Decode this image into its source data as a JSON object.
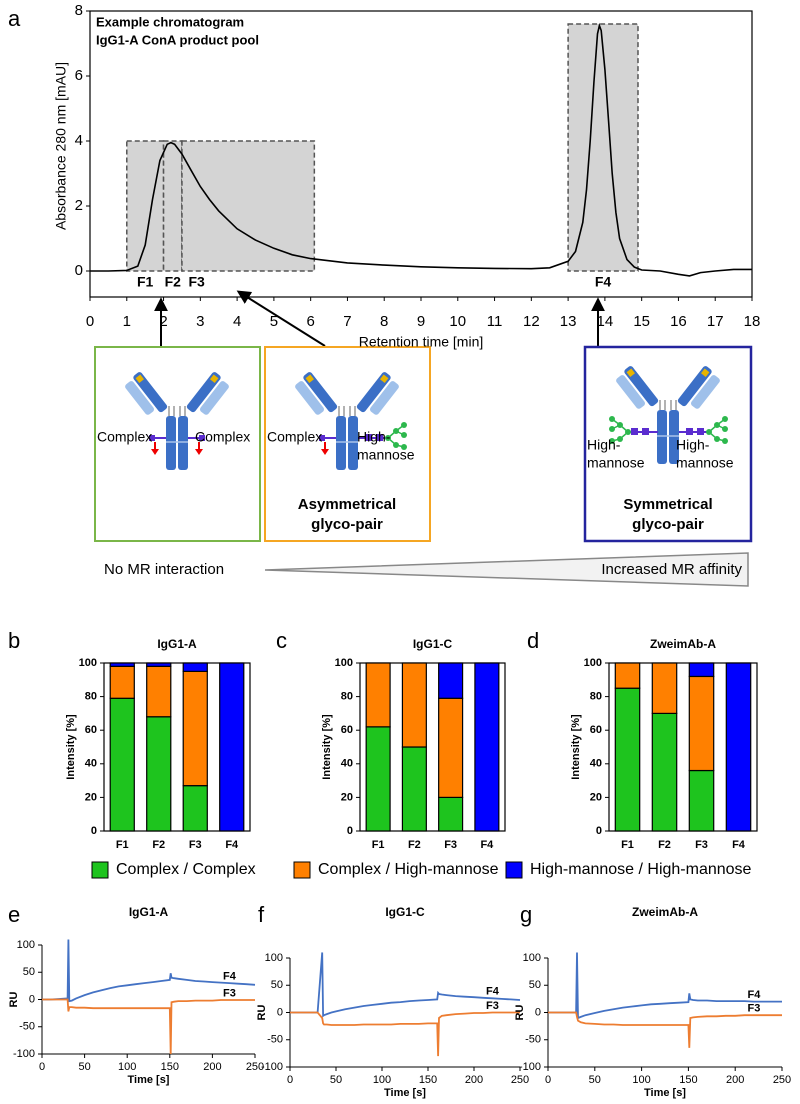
{
  "panel_labels": [
    "a",
    "b",
    "c",
    "d",
    "e",
    "f",
    "g"
  ],
  "diagram": {
    "boxes": [
      {
        "left": "Complex",
        "right": "Complex"
      },
      {
        "left": "Complex",
        "right": [
          "High-",
          "mannose"
        ],
        "caption": [
          "Asymmetrical",
          "glyco-pair"
        ]
      },
      {
        "left": [
          "High-",
          "mannose"
        ],
        "right": [
          "High-",
          "mannose"
        ],
        "caption": [
          "Symmetrical",
          "glyco-pair"
        ]
      }
    ],
    "scale": {
      "left": "No MR interaction",
      "right": "Increased MR affinity"
    }
  },
  "chart_data": [
    {
      "type": "line",
      "title": "Example chromatogram",
      "subtitle": "IgG1-A ConA product pool",
      "xlabel": "Retention time [min]",
      "ylabel": "Absorbance 280 nm [mAU]",
      "xlim": [
        0,
        18
      ],
      "ylim": [
        -0.8,
        8
      ],
      "xticks": [
        0,
        1,
        2,
        3,
        4,
        5,
        6,
        7,
        8,
        9,
        10,
        11,
        12,
        13,
        14,
        15,
        16,
        17,
        18
      ],
      "yticks": [
        0,
        2,
        4,
        6,
        8
      ],
      "x": [
        0,
        0.5,
        1,
        1.3,
        1.5,
        1.7,
        1.9,
        2.1,
        2.2,
        2.3,
        2.5,
        2.75,
        3,
        3.25,
        3.5,
        4,
        4.5,
        5,
        5.5,
        6,
        7,
        8,
        9,
        10,
        11,
        12,
        12.5,
        13,
        13.2,
        13.4,
        13.5,
        13.6,
        13.7,
        13.8,
        13.85,
        13.9,
        14,
        14.1,
        14.2,
        14.3,
        14.4,
        14.6,
        14.8,
        15,
        15.5,
        16,
        16.3,
        16.6,
        17,
        17.5,
        18
      ],
      "series": [
        {
          "color": "#000000",
          "values": [
            0,
            0,
            0.02,
            0.15,
            0.8,
            2.2,
            3.4,
            3.9,
            3.95,
            3.9,
            3.6,
            3.1,
            2.6,
            2.2,
            1.85,
            1.3,
            0.95,
            0.7,
            0.5,
            0.38,
            0.25,
            0.18,
            0.13,
            0.1,
            0.08,
            0.07,
            0.1,
            0.3,
            0.6,
            1.5,
            2.5,
            4,
            5.8,
            7.3,
            7.55,
            7.4,
            6.2,
            4.6,
            3,
            1.8,
            1,
            0.35,
            0.12,
            0.03,
            0,
            -0.1,
            -0.15,
            -0.05,
            0,
            0.05,
            0.05
          ]
        }
      ],
      "fractions": [
        {
          "label": "F1",
          "start": 1,
          "end": 2,
          "top": 4
        },
        {
          "label": "F2",
          "start": 2,
          "end": 2.5,
          "top": 4
        },
        {
          "label": "F3",
          "start": 2.5,
          "end": 6.1,
          "top": 4
        },
        {
          "label": "F4",
          "start": 13,
          "end": 14.9,
          "top": 7.6
        }
      ]
    },
    {
      "type": "bar",
      "title": "IgG1-A",
      "ylabel": "Intensity [%]",
      "categories": [
        "F1",
        "F2",
        "F3",
        "F4"
      ],
      "ylim": [
        0,
        100
      ],
      "yticks": [
        0,
        20,
        40,
        60,
        80,
        100
      ],
      "stacked": true,
      "series": [
        {
          "name": "Complex / Complex",
          "color": "#1ec41e",
          "values": [
            79,
            68,
            27,
            0
          ]
        },
        {
          "name": "Complex / High-mannose",
          "color": "#ff8000",
          "values": [
            19,
            30,
            68,
            0
          ]
        },
        {
          "name": "High-mannose / High-mannose",
          "color": "#0000ff",
          "values": [
            2,
            2,
            5,
            100
          ]
        }
      ]
    },
    {
      "type": "bar",
      "title": "IgG1-C",
      "ylabel": "Intensity [%]",
      "categories": [
        "F1",
        "F2",
        "F3",
        "F4"
      ],
      "ylim": [
        0,
        100
      ],
      "yticks": [
        0,
        20,
        40,
        60,
        80,
        100
      ],
      "stacked": true,
      "series": [
        {
          "color": "#1ec41e",
          "values": [
            62,
            50,
            20,
            0
          ]
        },
        {
          "color": "#ff8000",
          "values": [
            38,
            50,
            59,
            0
          ]
        },
        {
          "color": "#0000ff",
          "values": [
            0,
            0,
            21,
            100
          ]
        }
      ]
    },
    {
      "type": "bar",
      "title": "ZweimAb-A",
      "ylabel": "Intensity [%]",
      "categories": [
        "F1",
        "F2",
        "F3",
        "F4"
      ],
      "ylim": [
        0,
        100
      ],
      "yticks": [
        0,
        20,
        40,
        60,
        80,
        100
      ],
      "stacked": true,
      "series": [
        {
          "color": "#1ec41e",
          "values": [
            85,
            70,
            36,
            0
          ]
        },
        {
          "color": "#ff8000",
          "values": [
            15,
            30,
            56,
            0
          ]
        },
        {
          "color": "#0000ff",
          "values": [
            0,
            0,
            8,
            100
          ]
        }
      ]
    },
    {
      "type": "line",
      "title": "IgG1-A",
      "xlabel": "Time [s]",
      "ylabel": "RU",
      "xlim": [
        0,
        250
      ],
      "ylim": [
        -100,
        100
      ],
      "xticks": [
        0,
        50,
        100,
        150,
        200,
        250
      ],
      "yticks": [
        -100,
        -50,
        0,
        50,
        100
      ],
      "x": [
        0,
        10,
        20,
        30,
        31,
        32,
        35,
        40,
        50,
        60,
        70,
        80,
        90,
        100,
        110,
        120,
        130,
        140,
        150,
        151,
        152,
        155,
        160,
        170,
        180,
        190,
        200,
        210,
        220,
        230,
        240,
        250
      ],
      "series": [
        {
          "name": "F4",
          "color": "#4472c4",
          "values": [
            0,
            0,
            1,
            2,
            110,
            -3,
            -2,
            2,
            8,
            13,
            17,
            21,
            24,
            26,
            28,
            30,
            32,
            34,
            36,
            48,
            40,
            39,
            38,
            36,
            34,
            33,
            32,
            31,
            30,
            29,
            28,
            27
          ]
        },
        {
          "name": "F3",
          "color": "#ed7d31",
          "values": [
            0,
            0,
            0,
            0,
            -22,
            -14,
            -14,
            -15,
            -15,
            -16,
            -16,
            -16,
            -16,
            -16,
            -16,
            -16,
            -16,
            -16,
            -16,
            -100,
            -5,
            -4,
            -3,
            -3,
            -2,
            -2,
            -2,
            -1,
            -1,
            -1,
            -1,
            -1
          ]
        }
      ]
    },
    {
      "type": "line",
      "title": "IgG1-C",
      "xlabel": "Time [s]",
      "ylabel": "RU",
      "xlim": [
        0,
        250
      ],
      "ylim": [
        -100,
        100
      ],
      "xticks": [
        0,
        50,
        100,
        150,
        200,
        250
      ],
      "yticks": [
        -100,
        -50,
        0,
        50,
        100
      ],
      "x": [
        0,
        10,
        20,
        30,
        35,
        36,
        37,
        40,
        45,
        50,
        60,
        70,
        80,
        90,
        100,
        110,
        120,
        130,
        140,
        150,
        160,
        161,
        162,
        165,
        170,
        180,
        190,
        200,
        210,
        220,
        230,
        240,
        250
      ],
      "series": [
        {
          "name": "F4",
          "color": "#4472c4",
          "values": [
            0,
            0,
            0,
            0,
            110,
            -6,
            -5,
            -3,
            0,
            2,
            6,
            9,
            12,
            14,
            16,
            18,
            19,
            21,
            22,
            23,
            24,
            36,
            34,
            33,
            32,
            30,
            29,
            28,
            27,
            26,
            25,
            24,
            23
          ]
        },
        {
          "name": "F3",
          "color": "#ed7d31",
          "values": [
            0,
            0,
            0,
            0,
            -10,
            -20,
            -22,
            -22,
            -23,
            -23,
            -23,
            -23,
            -22,
            -22,
            -22,
            -22,
            -21,
            -21,
            -21,
            -20,
            -20,
            -80,
            -10,
            -6,
            -5,
            -3,
            -2,
            -1,
            -1,
            0,
            0,
            0,
            0
          ]
        }
      ]
    },
    {
      "type": "line",
      "title": "ZweimAb-A",
      "xlabel": "Time [s]",
      "ylabel": "RU",
      "xlim": [
        0,
        250
      ],
      "ylim": [
        -100,
        100
      ],
      "xticks": [
        0,
        50,
        100,
        150,
        200,
        250
      ],
      "yticks": [
        -100,
        -50,
        0,
        50,
        100
      ],
      "x": [
        0,
        10,
        20,
        30,
        31,
        32,
        35,
        40,
        50,
        60,
        70,
        80,
        90,
        100,
        110,
        120,
        130,
        140,
        150,
        151,
        152,
        155,
        160,
        170,
        180,
        190,
        200,
        210,
        220,
        230,
        240,
        250
      ],
      "series": [
        {
          "name": "F4",
          "color": "#4472c4",
          "values": [
            0,
            0,
            0,
            0,
            110,
            -10,
            -8,
            -5,
            -1,
            3,
            6,
            9,
            11,
            13,
            15,
            16,
            17,
            18,
            19,
            35,
            24,
            23,
            22,
            22,
            21,
            21,
            21,
            21,
            20,
            20,
            20,
            20
          ]
        },
        {
          "name": "F3",
          "color": "#ed7d31",
          "values": [
            0,
            0,
            0,
            0,
            -8,
            -15,
            -18,
            -20,
            -21,
            -22,
            -22,
            -23,
            -23,
            -23,
            -23,
            -23,
            -23,
            -23,
            -23,
            -65,
            -10,
            -9,
            -8,
            -7,
            -7,
            -6,
            -6,
            -5,
            -5,
            -5,
            -5,
            -5
          ]
        }
      ]
    }
  ]
}
